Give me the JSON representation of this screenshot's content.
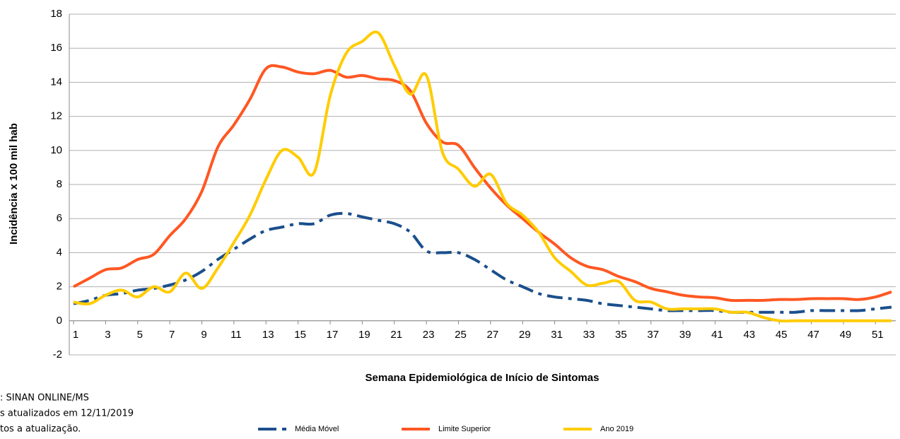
{
  "chart_data": {
    "type": "line",
    "y_label": "Incidência x 100 mil hab",
    "x_label": "Semana Epidemiológica de Início de Sintomas",
    "x": [
      1,
      2,
      3,
      4,
      5,
      6,
      7,
      8,
      9,
      10,
      11,
      12,
      13,
      14,
      15,
      16,
      17,
      18,
      19,
      20,
      21,
      22,
      23,
      24,
      25,
      26,
      27,
      28,
      29,
      30,
      31,
      32,
      33,
      34,
      35,
      36,
      37,
      38,
      39,
      40,
      41,
      42,
      43,
      44,
      45,
      46,
      47,
      48,
      49,
      50,
      51,
      52
    ],
    "xlim": [
      1,
      52
    ],
    "xticks": [
      1,
      3,
      5,
      7,
      9,
      11,
      13,
      15,
      17,
      19,
      21,
      23,
      25,
      27,
      29,
      31,
      33,
      35,
      37,
      39,
      41,
      43,
      45,
      47,
      49,
      51
    ],
    "ylim": [
      -2,
      18
    ],
    "yticks": [
      -2,
      0,
      2,
      4,
      6,
      8,
      10,
      12,
      14,
      16,
      18
    ],
    "grid": true,
    "series": [
      {
        "name": "Média Móvel",
        "color": "#1b4f8c",
        "style": "dashdot",
        "values": [
          1.0,
          1.2,
          1.5,
          1.6,
          1.8,
          1.9,
          2.1,
          2.4,
          2.9,
          3.6,
          4.2,
          4.8,
          5.3,
          5.5,
          5.7,
          5.7,
          6.2,
          6.3,
          6.1,
          5.9,
          5.7,
          5.2,
          4.1,
          4.0,
          4.0,
          3.6,
          3.0,
          2.4,
          2.0,
          1.6,
          1.4,
          1.3,
          1.2,
          1.0,
          0.9,
          0.8,
          0.7,
          0.6,
          0.6,
          0.6,
          0.6,
          0.5,
          0.5,
          0.5,
          0.5,
          0.5,
          0.6,
          0.6,
          0.6,
          0.6,
          0.7,
          0.8
        ]
      },
      {
        "name": "Limite Superior",
        "color": "#ff5722",
        "style": "solid",
        "values": [
          2.0,
          2.5,
          3.0,
          3.1,
          3.6,
          3.9,
          5.0,
          6.0,
          7.6,
          10.2,
          11.5,
          13.0,
          14.8,
          14.9,
          14.6,
          14.5,
          14.7,
          14.3,
          14.4,
          14.2,
          14.1,
          13.5,
          11.6,
          10.5,
          10.3,
          9.0,
          7.8,
          6.8,
          6.0,
          5.2,
          4.5,
          3.7,
          3.2,
          3.0,
          2.6,
          2.3,
          1.9,
          1.7,
          1.5,
          1.4,
          1.35,
          1.2,
          1.2,
          1.2,
          1.25,
          1.25,
          1.3,
          1.3,
          1.3,
          1.25,
          1.4,
          1.7
        ]
      },
      {
        "name": "Ano 2019",
        "color": "#ffcc00",
        "style": "solid",
        "values": [
          1.1,
          1.0,
          1.5,
          1.8,
          1.4,
          2.0,
          1.7,
          2.8,
          1.9,
          3.1,
          4.6,
          6.2,
          8.3,
          10.0,
          9.6,
          8.7,
          13.2,
          15.7,
          16.4,
          16.9,
          15.0,
          13.3,
          14.4,
          9.9,
          8.9,
          7.9,
          8.6,
          6.9,
          6.2,
          5.2,
          3.7,
          2.9,
          2.1,
          2.2,
          2.3,
          1.2,
          1.1,
          0.7,
          0.7,
          0.7,
          0.7,
          0.5,
          0.5,
          0.2,
          0,
          0,
          0,
          0,
          0,
          0,
          0,
          0
        ]
      }
    ],
    "notes": [
      ": SINAN ONLINE/MS",
      "s atualizados em 12/11/2019",
      "tos a atualização."
    ]
  }
}
